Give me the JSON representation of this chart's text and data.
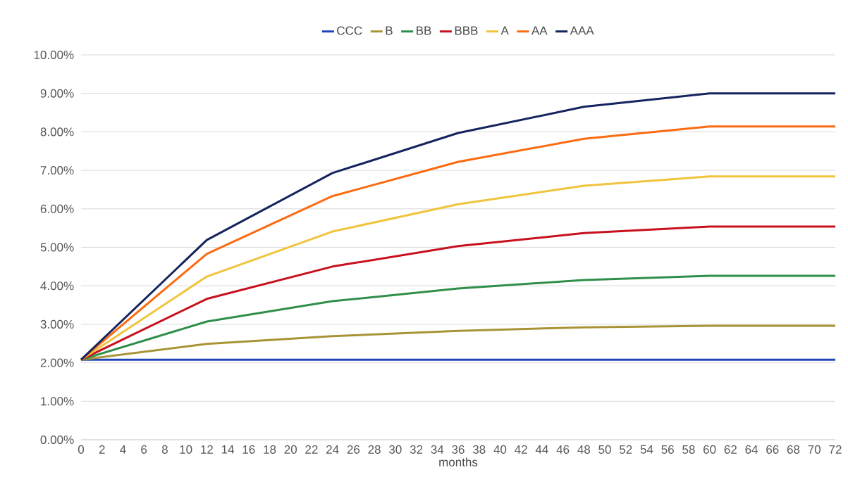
{
  "chart_data": {
    "type": "line",
    "xlabel": "months",
    "x": [
      0,
      12,
      24,
      36,
      48,
      60,
      72
    ],
    "series": [
      {
        "name": "CCC",
        "color": "#2044b8",
        "values": [
          2.08,
          2.08,
          2.08,
          2.08,
          2.08,
          2.08,
          2.08
        ]
      },
      {
        "name": "B",
        "color": "#a89436",
        "values": [
          2.08,
          2.49,
          2.69,
          2.83,
          2.92,
          2.96,
          2.96
        ]
      },
      {
        "name": "BB",
        "color": "#2f8f4a",
        "values": [
          2.08,
          3.07,
          3.6,
          3.93,
          4.15,
          4.26,
          4.26
        ]
      },
      {
        "name": "BBB",
        "color": "#c8101e",
        "values": [
          2.08,
          3.66,
          4.5,
          5.03,
          5.37,
          5.54,
          5.54
        ]
      },
      {
        "name": "A",
        "color": "#f0c43c",
        "values": [
          2.08,
          4.24,
          5.41,
          6.12,
          6.6,
          6.84,
          6.84
        ]
      },
      {
        "name": "AA",
        "color": "#fb6b12",
        "values": [
          2.08,
          4.83,
          6.33,
          7.22,
          7.82,
          8.14,
          8.14
        ]
      },
      {
        "name": "AAA",
        "color": "#14245e",
        "values": [
          2.08,
          5.19,
          6.93,
          7.97,
          8.65,
          9.0,
          9.0
        ]
      }
    ],
    "xlim": [
      0,
      72
    ],
    "xticks": [
      0,
      2,
      4,
      6,
      8,
      10,
      12,
      14,
      16,
      18,
      20,
      22,
      24,
      26,
      28,
      30,
      32,
      34,
      36,
      38,
      40,
      42,
      44,
      46,
      48,
      50,
      52,
      54,
      56,
      58,
      60,
      62,
      64,
      66,
      68,
      70,
      72
    ],
    "ylim": [
      0,
      10
    ],
    "yticks": [
      {
        "value": 0,
        "label": "0.00%"
      },
      {
        "value": 1,
        "label": "1.00%"
      },
      {
        "value": 2,
        "label": "2.00%"
      },
      {
        "value": 3,
        "label": "3.00%"
      },
      {
        "value": 4,
        "label": "4.00%"
      },
      {
        "value": 5,
        "label": "5.00%"
      },
      {
        "value": 6,
        "label": "6.00%"
      },
      {
        "value": 7,
        "label": "7.00%"
      },
      {
        "value": 8,
        "label": "8.00%"
      },
      {
        "value": 9,
        "label": "9.00%"
      },
      {
        "value": 10,
        "label": "10.00%"
      }
    ],
    "grid": "y",
    "legend": "top",
    "marker": "none",
    "line_style": "solid"
  }
}
